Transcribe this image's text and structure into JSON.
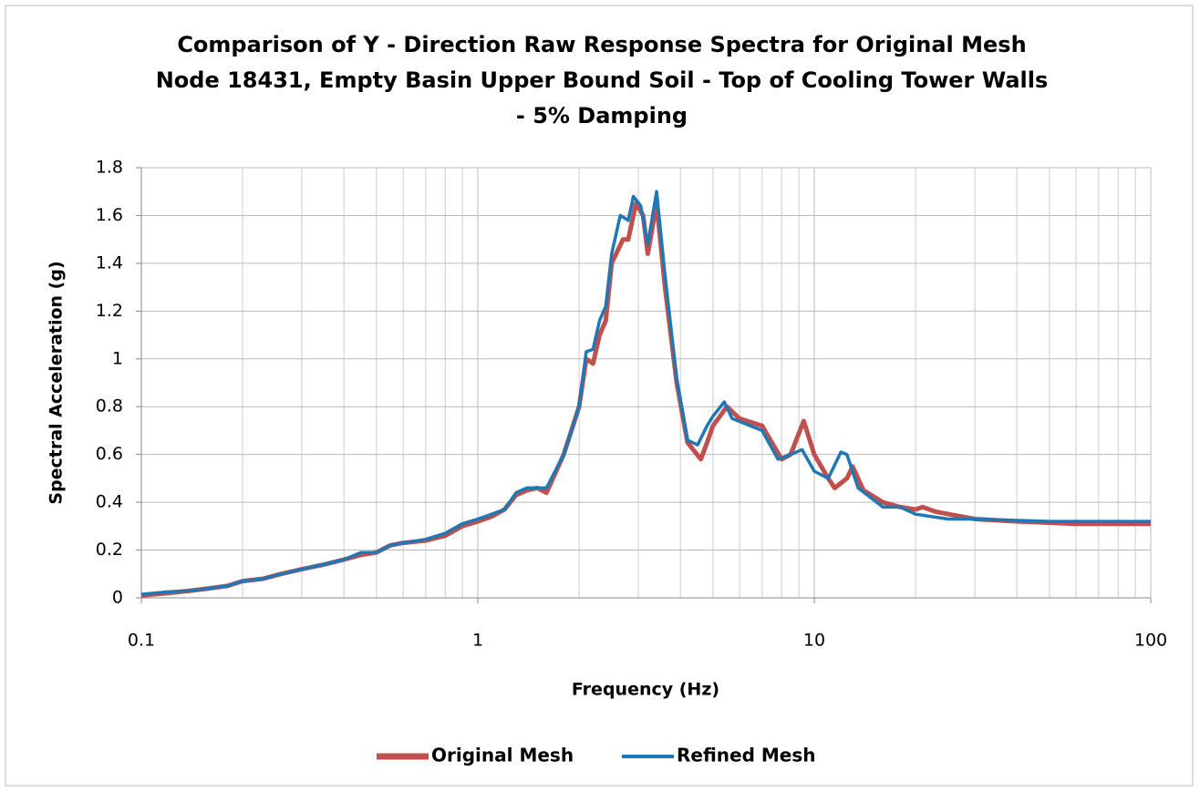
{
  "chart_data": {
    "type": "line",
    "title": [
      "Comparison of Y - Direction Raw Response Spectra for Original Mesh",
      "Node 18431, Empty Basin Upper Bound Soil - Top of Cooling Tower Walls",
      "- 5% Damping"
    ],
    "x_label": "Frequency (Hz)",
    "y_label": "Spectral Acceleration (g)",
    "x_log": true,
    "grid": true,
    "minor_grid": true,
    "legend": "bottom",
    "xlim": [
      0.1,
      100
    ],
    "xticks": [
      0.1,
      1,
      10,
      100
    ],
    "ylim": [
      0,
      1.8
    ],
    "yticks": [
      0,
      0.2,
      0.4,
      0.6,
      0.8,
      1,
      1.2,
      1.4,
      1.6,
      1.8
    ],
    "series": [
      {
        "name": "Original Mesh",
        "color": "#c0504d",
        "x": [
          0.1,
          0.12,
          0.14,
          0.16,
          0.18,
          0.2,
          0.23,
          0.26,
          0.3,
          0.35,
          0.4,
          0.45,
          0.5,
          0.55,
          0.6,
          0.7,
          0.8,
          0.9,
          1.0,
          1.1,
          1.2,
          1.3,
          1.4,
          1.5,
          1.6,
          1.8,
          2.0,
          2.1,
          2.2,
          2.3,
          2.4,
          2.5,
          2.7,
          2.8,
          2.95,
          3.1,
          3.2,
          3.4,
          3.6,
          3.9,
          4.2,
          4.6,
          4.8,
          5.0,
          5.5,
          6.0,
          7.0,
          8.0,
          8.5,
          9.3,
          10,
          11,
          11.5,
          12.5,
          13,
          14,
          16,
          18,
          20,
          21,
          23,
          30,
          40,
          60,
          100
        ],
        "values": [
          0.01,
          0.02,
          0.03,
          0.04,
          0.05,
          0.07,
          0.08,
          0.1,
          0.12,
          0.14,
          0.16,
          0.18,
          0.19,
          0.22,
          0.23,
          0.24,
          0.26,
          0.3,
          0.32,
          0.34,
          0.37,
          0.43,
          0.45,
          0.46,
          0.44,
          0.6,
          0.8,
          1.0,
          0.98,
          1.1,
          1.16,
          1.4,
          1.5,
          1.5,
          1.65,
          1.6,
          1.44,
          1.65,
          1.3,
          0.9,
          0.65,
          0.58,
          0.65,
          0.72,
          0.8,
          0.75,
          0.72,
          0.58,
          0.6,
          0.74,
          0.6,
          0.5,
          0.46,
          0.5,
          0.55,
          0.45,
          0.4,
          0.38,
          0.37,
          0.38,
          0.36,
          0.33,
          0.32,
          0.31,
          0.31
        ]
      },
      {
        "name": "Refined Mesh",
        "color": "#1f77b4",
        "x": [
          0.1,
          0.12,
          0.14,
          0.16,
          0.18,
          0.2,
          0.23,
          0.26,
          0.3,
          0.35,
          0.4,
          0.45,
          0.5,
          0.55,
          0.6,
          0.7,
          0.8,
          0.9,
          1.0,
          1.1,
          1.2,
          1.3,
          1.4,
          1.5,
          1.6,
          1.8,
          2.0,
          2.1,
          2.2,
          2.3,
          2.4,
          2.5,
          2.65,
          2.8,
          2.9,
          3.05,
          3.2,
          3.4,
          3.6,
          3.9,
          4.2,
          4.5,
          4.8,
          5.0,
          5.4,
          5.7,
          7.0,
          7.8,
          8.5,
          9.2,
          10,
          11,
          12,
          12.5,
          13.5,
          16,
          18,
          20,
          25,
          30,
          50,
          100
        ],
        "values": [
          0.015,
          0.025,
          0.03,
          0.04,
          0.05,
          0.07,
          0.08,
          0.1,
          0.12,
          0.14,
          0.16,
          0.19,
          0.19,
          0.22,
          0.23,
          0.245,
          0.27,
          0.31,
          0.33,
          0.35,
          0.37,
          0.44,
          0.46,
          0.46,
          0.46,
          0.6,
          0.8,
          1.03,
          1.04,
          1.16,
          1.22,
          1.44,
          1.6,
          1.58,
          1.68,
          1.64,
          1.48,
          1.7,
          1.35,
          0.92,
          0.66,
          0.64,
          0.72,
          0.76,
          0.82,
          0.75,
          0.7,
          0.58,
          0.6,
          0.62,
          0.53,
          0.5,
          0.61,
          0.6,
          0.46,
          0.38,
          0.38,
          0.35,
          0.33,
          0.33,
          0.32,
          0.32
        ]
      }
    ]
  }
}
